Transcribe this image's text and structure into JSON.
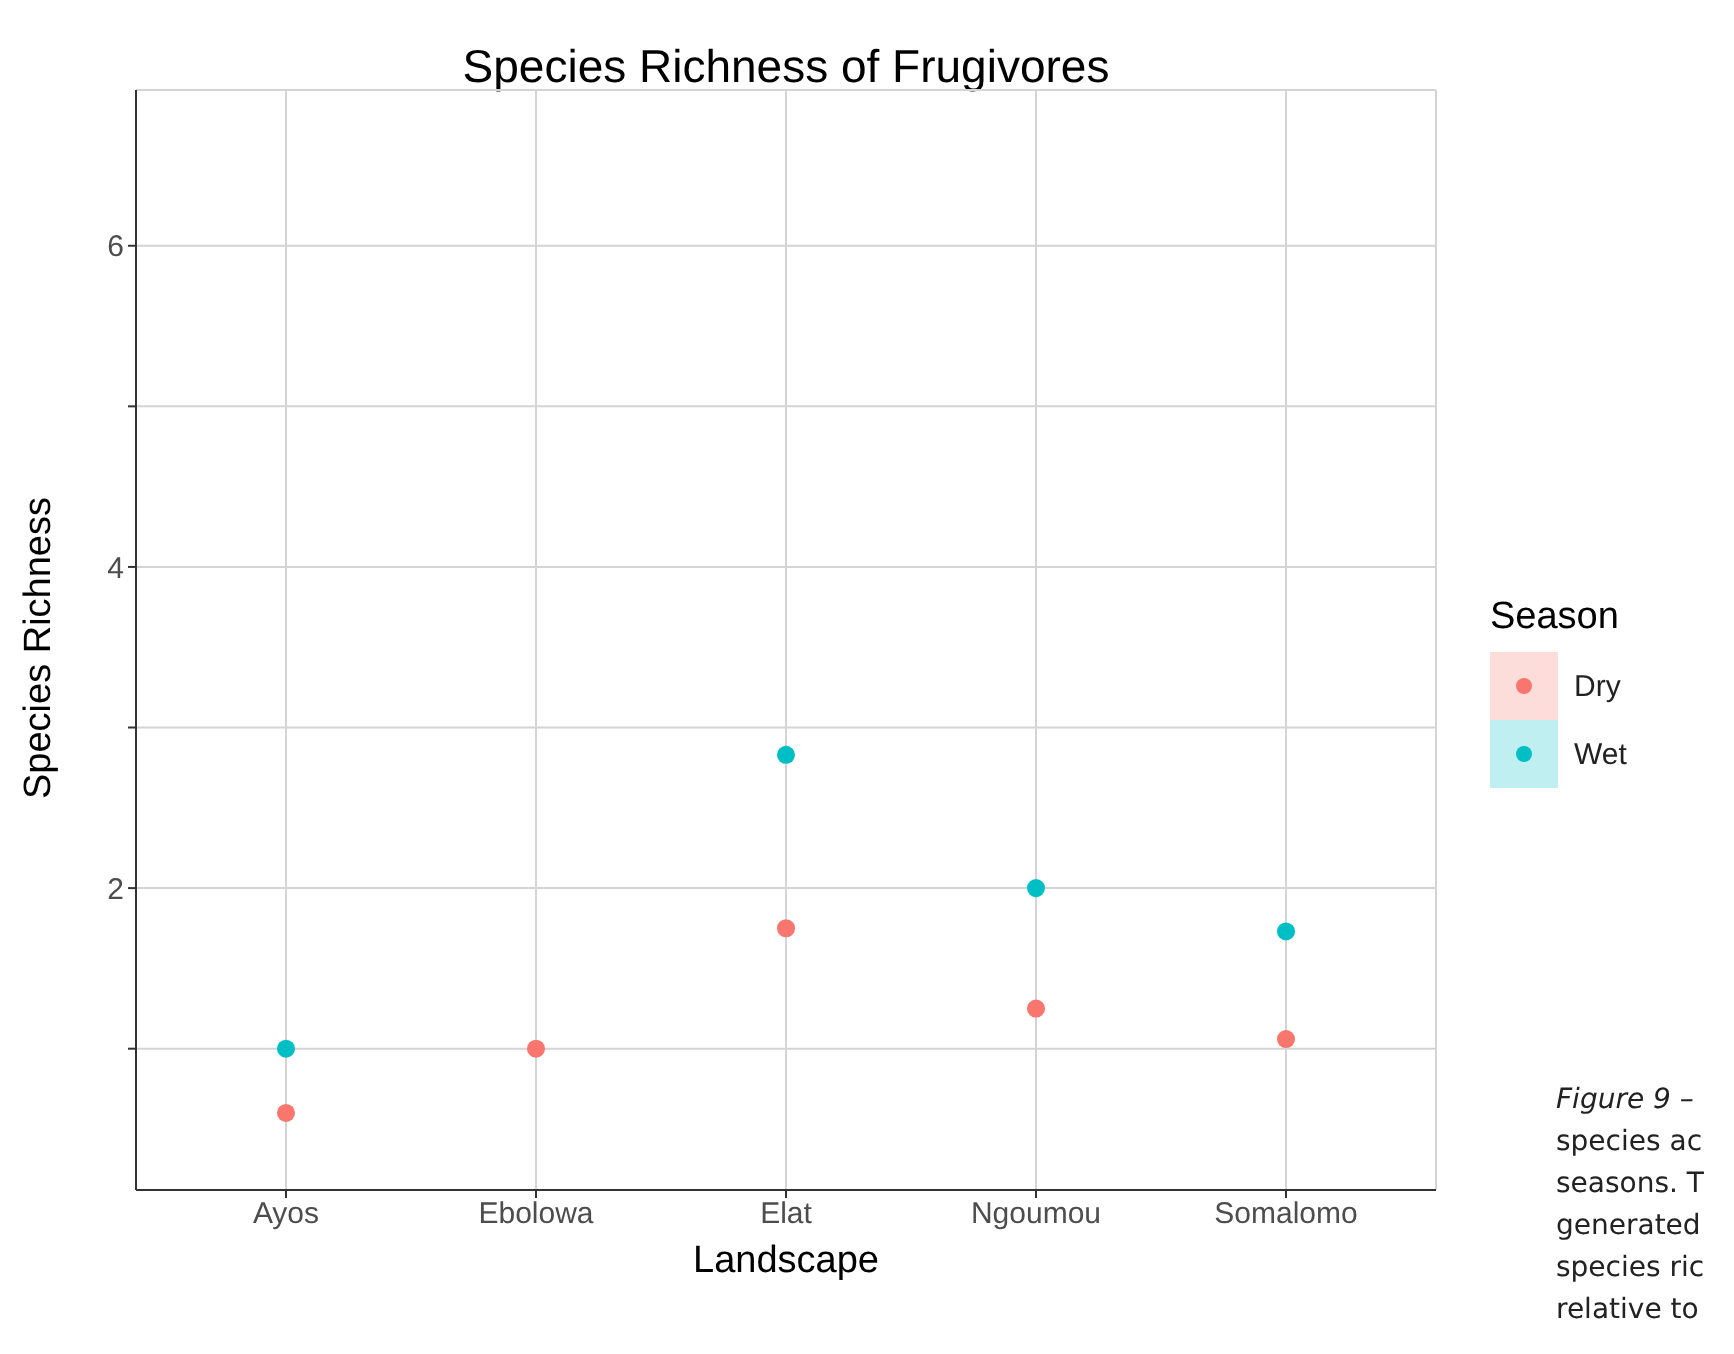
{
  "chart_data": {
    "type": "scatter",
    "title": "Species Richness of Frugivores",
    "xlabel": "Landscape",
    "ylabel": "Species Richness",
    "legend_title": "Season",
    "categories": [
      "Ayos",
      "Ebolowa",
      "Elat",
      "Ngoumou",
      "Somalomo"
    ],
    "series": [
      {
        "name": "Dry",
        "color": "#f8766d",
        "values": [
          0.6,
          1.0,
          1.75,
          1.25,
          1.06
        ]
      },
      {
        "name": "Wet",
        "color": "#00bfc4",
        "values": [
          1.0,
          null,
          2.83,
          2.0,
          1.73
        ]
      }
    ],
    "ylim": [
      0.12,
      6.97
    ],
    "yticks": [
      {
        "value": 1,
        "label": null
      },
      2,
      {
        "value": 3,
        "label": null
      },
      4,
      {
        "value": 5,
        "label": null
      },
      6
    ],
    "grid": true,
    "legend": "right",
    "marker": "circle",
    "annotations": [
      "Figure 9 –",
      "species ac",
      "seasons. T",
      "generated",
      "species ric",
      "relative to"
    ]
  }
}
